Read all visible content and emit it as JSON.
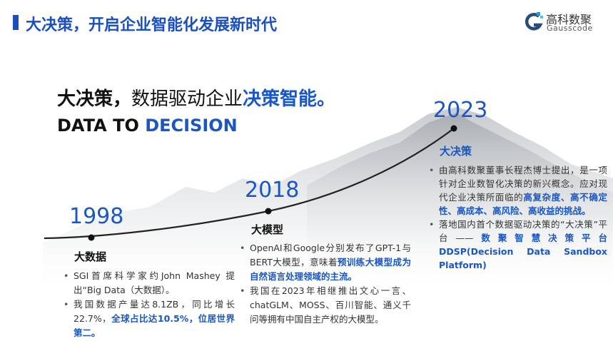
{
  "header": {
    "title": "大决策，开启企业智能化发展新时代",
    "logo": {
      "cn": "高科数聚",
      "en": "Gausscode",
      "icon": "gausscode-logo-icon"
    }
  },
  "headline": {
    "part1": "大决策，",
    "part2": "数据驱动企业",
    "part3": "决策智能。"
  },
  "tagline": {
    "part1": "DATA TO ",
    "part2": "DECISION"
  },
  "colors": {
    "accent": "#1a56c4",
    "title": "#1a4fc0",
    "text": "#333333"
  },
  "timeline": [
    {
      "year": "1998",
      "title": "大数据",
      "bullets": [
        [
          {
            "t": "SGI首席科学家约John  Mashey 提出“Big Data（大数据）。"
          }
        ],
        [
          {
            "t": "我国数据产量达8.1ZB，同比增长22.7%，"
          },
          {
            "t": "全球占比达10.5%，位居世界第二。",
            "hl": true
          }
        ]
      ]
    },
    {
      "year": "2018",
      "title": "大模型",
      "bullets": [
        [
          {
            "t": "OpenAI和Google分别发布了GPT-1与BERT大模型，意味着"
          },
          {
            "t": "预训练大模型成为自然语言处理领域的主流。",
            "hl": true
          }
        ],
        [
          {
            "t": "我国在2023年相继推出文心一言、chatGLM、MOSS、百川智能、通义千问等拥有中国自主产权的大模型。"
          }
        ]
      ]
    },
    {
      "year": "2023",
      "title": "大决策",
      "bullets": [
        [
          {
            "t": "由高科数聚董事长程杰博士提出，是一项针对企业数智化决策的新兴概念。应对现代企业决策所面临的"
          },
          {
            "t": "高复杂度、高不确定性、高成本、高风险、高收益的挑战。",
            "hl": true
          }
        ],
        [
          {
            "t": "落地国内首个数据驱动决策的“大决策”平台——"
          },
          {
            "t": "数聚智慧决策平台DDSP(Decision Data Sandbox Platform)",
            "hl": true
          }
        ]
      ]
    }
  ]
}
